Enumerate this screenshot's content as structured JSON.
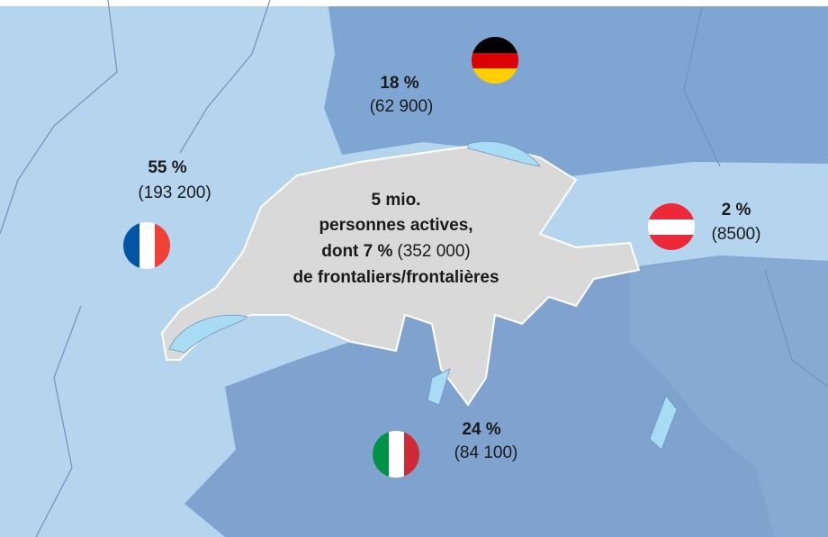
{
  "labels": {
    "germany": {
      "share": "18 %",
      "count": "(62 900)"
    },
    "france": {
      "share": "55 %",
      "count": "(193 200)"
    },
    "austria": {
      "share": "2 %",
      "count": "(8500)"
    },
    "italy": {
      "share": "24 %",
      "count": "(84 100)"
    }
  },
  "center": {
    "line1": "5 mio.",
    "line2": "personnes actives,",
    "line3_bold": "dont 7 %",
    "line3_count": "(352 000)",
    "line4": "de frontaliers/frontalières"
  }
}
